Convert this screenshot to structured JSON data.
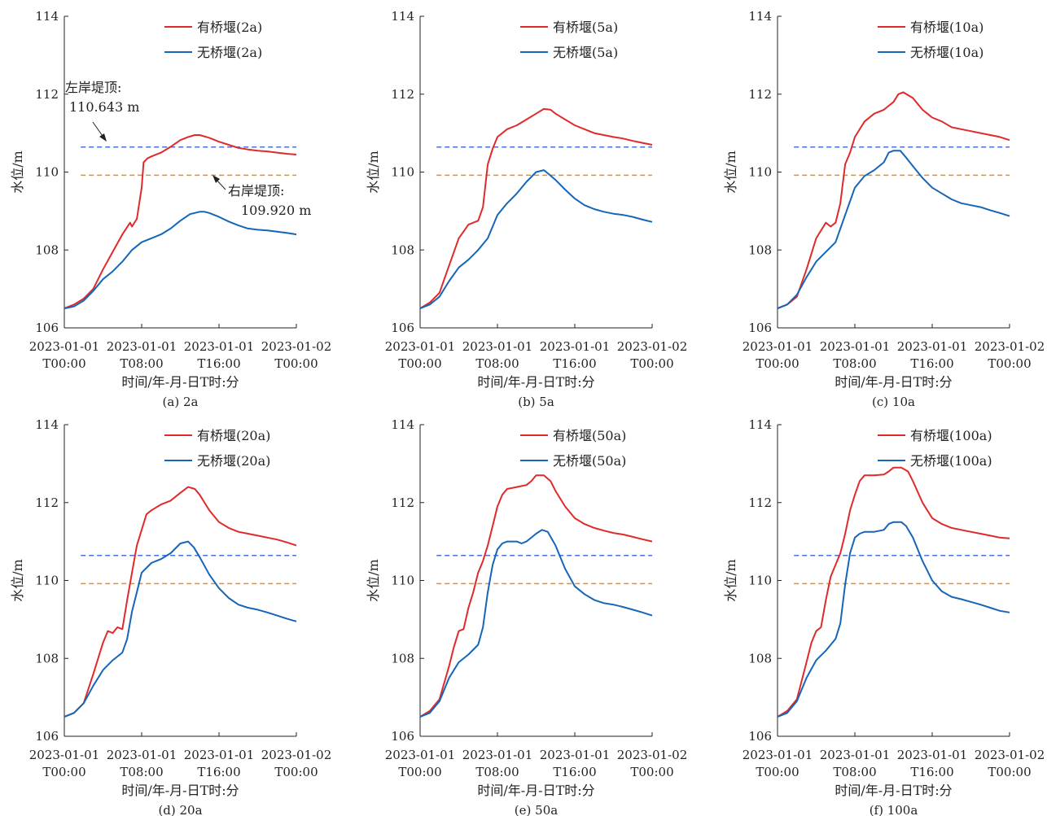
{
  "figure": {
    "bank_lines": [
      {
        "name": "left-bank-crest",
        "value": 110.643,
        "color": "#4a6fd8"
      },
      {
        "name": "right-bank-crest",
        "value": 109.92,
        "color": "#ef8a1f"
      }
    ],
    "annotations": {
      "left_line1": "左岸堤顶:",
      "left_line2": "110.643 m",
      "right_line1": "右岸堤顶:",
      "right_line2": "109.920 m"
    },
    "colors": {
      "with_bridge": "#e02a2a",
      "without_bridge": "#1565b8"
    }
  },
  "chart_data": [
    {
      "type": "line",
      "caption": "(a) 2a",
      "ylabel": "水位/m",
      "xlabel": "时间/年-月-日T时:分",
      "ylim": [
        106,
        114
      ],
      "yticks": [
        "106",
        "108",
        "110",
        "112",
        "114"
      ],
      "xlim": [
        0,
        24
      ],
      "xticks": [
        {
          "line1": "2023-01-01",
          "line2": "T00:00"
        },
        {
          "line1": "2023-01-01",
          "line2": "T08:00"
        },
        {
          "line1": "2023-01-01",
          "line2": "T16:00"
        },
        {
          "line1": "2023-01-02",
          "line2": "T00:00"
        }
      ],
      "series": [
        {
          "name": "有桥堰(2a)",
          "color": "#e02a2a",
          "x": [
            0,
            1,
            2,
            3,
            4,
            5,
            6,
            6.8,
            7,
            7.5,
            8,
            8.2,
            8.6,
            9,
            10,
            11,
            12,
            12.8,
            13.5,
            14,
            15,
            16,
            17,
            18,
            19,
            20,
            21,
            22,
            23,
            24
          ],
          "y": [
            106.5,
            106.6,
            106.75,
            107.0,
            107.5,
            107.95,
            108.4,
            108.7,
            108.6,
            108.8,
            109.6,
            110.25,
            110.35,
            110.4,
            110.5,
            110.65,
            110.82,
            110.9,
            110.95,
            110.95,
            110.88,
            110.78,
            110.7,
            110.62,
            110.58,
            110.55,
            110.53,
            110.5,
            110.47,
            110.45
          ]
        },
        {
          "name": "无桥堰(2a)",
          "color": "#1565b8",
          "x": [
            0,
            1,
            2,
            3,
            4,
            5,
            6,
            7,
            8,
            9,
            10,
            11,
            12,
            13,
            14,
            14.5,
            15,
            16,
            17,
            18,
            19,
            20,
            21,
            22,
            23,
            24
          ],
          "y": [
            106.5,
            106.55,
            106.7,
            106.95,
            107.25,
            107.45,
            107.7,
            108.0,
            108.2,
            108.3,
            108.4,
            108.55,
            108.75,
            108.92,
            108.98,
            108.98,
            108.95,
            108.85,
            108.73,
            108.63,
            108.55,
            108.52,
            108.5,
            108.47,
            108.44,
            108.4
          ]
        }
      ]
    },
    {
      "type": "line",
      "caption": "(b) 5a",
      "ylabel": "水位/m",
      "xlabel": "时间/年-月-日T时:分",
      "ylim": [
        106,
        114
      ],
      "yticks": [
        "106",
        "108",
        "110",
        "112",
        "114"
      ],
      "xlim": [
        0,
        24
      ],
      "xticks": [
        {
          "line1": "2023-01-01",
          "line2": "T00:00"
        },
        {
          "line1": "2023-01-01",
          "line2": "T08:00"
        },
        {
          "line1": "2023-01-01",
          "line2": "T16:00"
        },
        {
          "line1": "2023-01-02",
          "line2": "T00:00"
        }
      ],
      "series": [
        {
          "name": "有桥堰(5a)",
          "color": "#e02a2a",
          "x": [
            0,
            1,
            2,
            3,
            4,
            5,
            6,
            6.5,
            7,
            7.5,
            8,
            9,
            10,
            11,
            12,
            12.8,
            13.5,
            14,
            15,
            16,
            17,
            18,
            19,
            20,
            21,
            22,
            23,
            24
          ],
          "y": [
            106.5,
            106.65,
            106.9,
            107.6,
            108.3,
            108.65,
            108.75,
            109.1,
            110.2,
            110.6,
            110.9,
            111.1,
            111.2,
            111.35,
            111.5,
            111.62,
            111.6,
            111.5,
            111.35,
            111.2,
            111.1,
            111.0,
            110.95,
            110.9,
            110.86,
            110.8,
            110.75,
            110.7
          ]
        },
        {
          "name": "无桥堰(5a)",
          "color": "#1565b8",
          "x": [
            0,
            1,
            2,
            3,
            4,
            5,
            6,
            7,
            8,
            9,
            10,
            11,
            12,
            12.8,
            13.3,
            14,
            15,
            16,
            17,
            18,
            19,
            20,
            21,
            22,
            23,
            24
          ],
          "y": [
            106.5,
            106.6,
            106.8,
            107.2,
            107.55,
            107.75,
            108.0,
            108.3,
            108.9,
            109.2,
            109.45,
            109.75,
            110.0,
            110.05,
            109.95,
            109.8,
            109.55,
            109.32,
            109.15,
            109.05,
            108.98,
            108.93,
            108.9,
            108.85,
            108.78,
            108.72
          ]
        }
      ]
    },
    {
      "type": "line",
      "caption": "(c) 10a",
      "ylabel": "水位/m",
      "xlabel": "时间/年-月-日T时:分",
      "ylim": [
        106,
        114
      ],
      "yticks": [
        "106",
        "108",
        "110",
        "112",
        "114"
      ],
      "xlim": [
        0,
        24
      ],
      "xticks": [
        {
          "line1": "2023-01-01",
          "line2": "T00:00"
        },
        {
          "line1": "2023-01-01",
          "line2": "T08:00"
        },
        {
          "line1": "2023-01-01",
          "line2": "T16:00"
        },
        {
          "line1": "2023-01-02",
          "line2": "T00:00"
        }
      ],
      "series": [
        {
          "name": "有桥堰(10a)",
          "color": "#e02a2a",
          "x": [
            0,
            1,
            2,
            3,
            4,
            5,
            5.5,
            6,
            6.5,
            7,
            7.5,
            8,
            9,
            10,
            11,
            12,
            12.5,
            13,
            14,
            15,
            16,
            17,
            18,
            19,
            20,
            21,
            22,
            23,
            24
          ],
          "y": [
            106.5,
            106.6,
            106.8,
            107.5,
            108.3,
            108.7,
            108.6,
            108.7,
            109.2,
            110.2,
            110.5,
            110.9,
            111.3,
            111.5,
            111.6,
            111.8,
            112.0,
            112.05,
            111.9,
            111.6,
            111.4,
            111.3,
            111.15,
            111.1,
            111.05,
            111.0,
            110.95,
            110.9,
            110.82
          ]
        },
        {
          "name": "无桥堰(10a)",
          "color": "#1565b8",
          "x": [
            0,
            1,
            2,
            3,
            4,
            5,
            6,
            7,
            8,
            9,
            10,
            11,
            11.5,
            12,
            12.7,
            13.2,
            14,
            15,
            16,
            17,
            18,
            19,
            20,
            21,
            22,
            23,
            24
          ],
          "y": [
            106.5,
            106.6,
            106.85,
            107.3,
            107.7,
            107.95,
            108.2,
            108.9,
            109.6,
            109.9,
            110.05,
            110.25,
            110.5,
            110.55,
            110.55,
            110.4,
            110.15,
            109.85,
            109.6,
            109.45,
            109.3,
            109.2,
            109.15,
            109.1,
            109.02,
            108.95,
            108.87
          ]
        }
      ]
    },
    {
      "type": "line",
      "caption": "(d) 20a",
      "ylabel": "水位/m",
      "xlabel": "时间/年-月-日T时:分",
      "ylim": [
        106,
        114
      ],
      "yticks": [
        "106",
        "108",
        "110",
        "112",
        "114"
      ],
      "xlim": [
        0,
        24
      ],
      "xticks": [
        {
          "line1": "2023-01-01",
          "line2": "T00:00"
        },
        {
          "line1": "2023-01-01",
          "line2": "T08:00"
        },
        {
          "line1": "2023-01-01",
          "line2": "T16:00"
        },
        {
          "line1": "2023-01-02",
          "line2": "T00:00"
        }
      ],
      "series": [
        {
          "name": "有桥堰(20a)",
          "color": "#e02a2a",
          "x": [
            0,
            1,
            2,
            3,
            4,
            4.5,
            5,
            5.5,
            6,
            6.5,
            7,
            7.5,
            8,
            8.5,
            9,
            10,
            11,
            12,
            12.8,
            13.5,
            14,
            15,
            16,
            17,
            18,
            19,
            20,
            21,
            22,
            23,
            24
          ],
          "y": [
            106.5,
            106.6,
            106.85,
            107.6,
            108.4,
            108.7,
            108.65,
            108.8,
            108.75,
            109.5,
            110.2,
            110.9,
            111.3,
            111.7,
            111.8,
            111.95,
            112.05,
            112.25,
            112.4,
            112.35,
            112.2,
            111.8,
            111.5,
            111.35,
            111.25,
            111.2,
            111.15,
            111.1,
            111.05,
            110.98,
            110.9
          ]
        },
        {
          "name": "无桥堰(20a)",
          "color": "#1565b8",
          "x": [
            0,
            1,
            2,
            3,
            4,
            5,
            6,
            6.5,
            7,
            7.5,
            8,
            9,
            9.5,
            10,
            11,
            12,
            12.8,
            13.4,
            14,
            15,
            16,
            17,
            18,
            19,
            20,
            21,
            22,
            23,
            24
          ],
          "y": [
            106.5,
            106.6,
            106.85,
            107.3,
            107.7,
            107.95,
            108.15,
            108.5,
            109.2,
            109.7,
            110.2,
            110.45,
            110.5,
            110.55,
            110.7,
            110.95,
            111.0,
            110.85,
            110.6,
            110.15,
            109.8,
            109.55,
            109.38,
            109.3,
            109.25,
            109.18,
            109.1,
            109.02,
            108.95
          ]
        }
      ]
    },
    {
      "type": "line",
      "caption": "(e) 50a",
      "ylabel": "水位/m",
      "xlabel": "时间/年-月-日T时:分",
      "ylim": [
        106,
        114
      ],
      "yticks": [
        "106",
        "108",
        "110",
        "112",
        "114"
      ],
      "xlim": [
        0,
        24
      ],
      "xticks": [
        {
          "line1": "2023-01-01",
          "line2": "T00:00"
        },
        {
          "line1": "2023-01-01",
          "line2": "T08:00"
        },
        {
          "line1": "2023-01-01",
          "line2": "T16:00"
        },
        {
          "line1": "2023-01-02",
          "line2": "T00:00"
        }
      ],
      "series": [
        {
          "name": "有桥堰(50a)",
          "color": "#e02a2a",
          "x": [
            0,
            1,
            2,
            3,
            3.5,
            4,
            4.5,
            5,
            5.5,
            6,
            6.5,
            7,
            7.5,
            8,
            8.5,
            9,
            10,
            11,
            11.5,
            12,
            12.8,
            13.5,
            14,
            15,
            16,
            17,
            18,
            19,
            20,
            21,
            22,
            23,
            24
          ],
          "y": [
            106.5,
            106.65,
            106.95,
            107.8,
            108.3,
            108.7,
            108.75,
            109.3,
            109.7,
            110.2,
            110.5,
            110.9,
            111.4,
            111.9,
            112.2,
            112.35,
            112.4,
            112.45,
            112.55,
            112.7,
            112.7,
            112.55,
            112.3,
            111.9,
            111.6,
            111.45,
            111.35,
            111.28,
            111.22,
            111.18,
            111.12,
            111.06,
            111.0
          ]
        },
        {
          "name": "无桥堰(50a)",
          "color": "#1565b8",
          "x": [
            0,
            1,
            2,
            3,
            4,
            5,
            6,
            6.5,
            7,
            7.5,
            8,
            8.5,
            9,
            10,
            10.5,
            11,
            12,
            12.6,
            13.2,
            14,
            15,
            16,
            17,
            18,
            19,
            20,
            21,
            22,
            23,
            24
          ],
          "y": [
            106.5,
            106.6,
            106.9,
            107.5,
            107.9,
            108.1,
            108.35,
            108.8,
            109.7,
            110.4,
            110.8,
            110.95,
            111.0,
            111.0,
            110.95,
            111.0,
            111.2,
            111.3,
            111.25,
            110.9,
            110.3,
            109.85,
            109.65,
            109.5,
            109.42,
            109.38,
            109.32,
            109.25,
            109.18,
            109.1
          ]
        }
      ]
    },
    {
      "type": "line",
      "caption": "(f) 100a",
      "ylabel": "水位/m",
      "xlabel": "时间/年-月-日T时:分",
      "ylim": [
        106,
        114
      ],
      "yticks": [
        "106",
        "108",
        "110",
        "112",
        "114"
      ],
      "xlim": [
        0,
        24
      ],
      "xticks": [
        {
          "line1": "2023-01-01",
          "line2": "T00:00"
        },
        {
          "line1": "2023-01-01",
          "line2": "T08:00"
        },
        {
          "line1": "2023-01-01",
          "line2": "T16:00"
        },
        {
          "line1": "2023-01-02",
          "line2": "T00:00"
        }
      ],
      "series": [
        {
          "name": "有桥堰(100a)",
          "color": "#e02a2a",
          "x": [
            0,
            1,
            2,
            3,
            3.5,
            4,
            4.5,
            5,
            5.5,
            6,
            6.5,
            7,
            7.5,
            8,
            8.5,
            9,
            9.5,
            10,
            11,
            11.5,
            12,
            12.8,
            13.5,
            14,
            15,
            16,
            17,
            18,
            19,
            20,
            21,
            22,
            23,
            24
          ],
          "y": [
            106.5,
            106.65,
            106.95,
            107.9,
            108.4,
            108.7,
            108.8,
            109.5,
            110.1,
            110.4,
            110.7,
            111.2,
            111.8,
            112.2,
            112.55,
            112.7,
            112.7,
            112.7,
            112.72,
            112.8,
            112.9,
            112.9,
            112.8,
            112.55,
            112.0,
            111.6,
            111.45,
            111.35,
            111.3,
            111.25,
            111.2,
            111.15,
            111.1,
            111.08
          ]
        },
        {
          "name": "无桥堰(100a)",
          "color": "#1565b8",
          "x": [
            0,
            1,
            2,
            3,
            4,
            5,
            6,
            6.5,
            7,
            7.5,
            8,
            8.5,
            9,
            10,
            11,
            11.5,
            12,
            12.8,
            13.3,
            14,
            15,
            16,
            17,
            18,
            19,
            20,
            21,
            22,
            23,
            24
          ],
          "y": [
            106.5,
            106.6,
            106.9,
            107.5,
            107.95,
            108.2,
            108.5,
            108.9,
            109.9,
            110.7,
            111.1,
            111.2,
            111.25,
            111.25,
            111.3,
            111.45,
            111.5,
            111.5,
            111.4,
            111.1,
            110.5,
            110.0,
            109.72,
            109.58,
            109.52,
            109.45,
            109.38,
            109.3,
            109.22,
            109.18
          ]
        }
      ]
    }
  ]
}
